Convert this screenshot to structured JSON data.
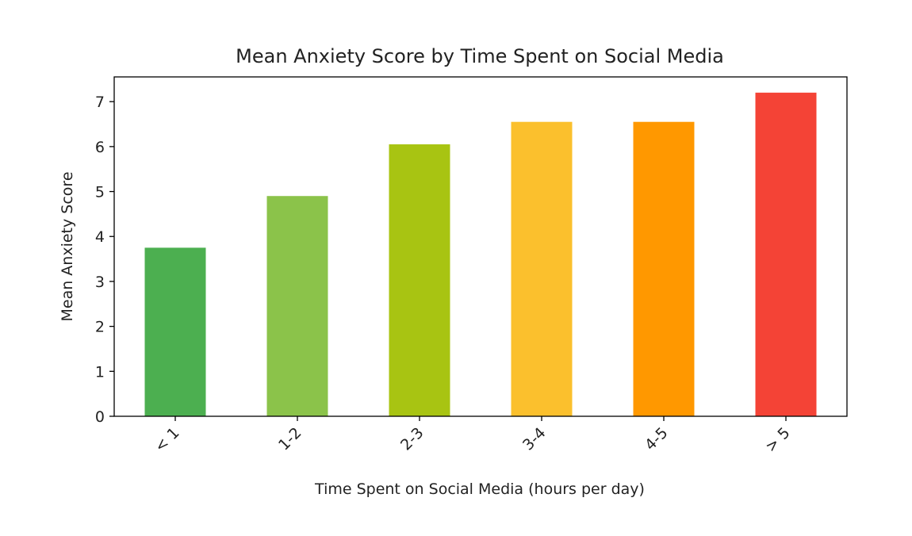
{
  "chart_data": {
    "type": "bar",
    "title": "Mean Anxiety Score by Time Spent on Social Media",
    "xlabel": "Time Spent on Social Media (hours per day)",
    "ylabel": "Mean Anxiety Score",
    "categories": [
      "< 1",
      "1-2",
      "2-3",
      "3-4",
      "4-5",
      "> 5"
    ],
    "values": [
      3.75,
      4.9,
      6.05,
      6.55,
      6.55,
      7.2
    ],
    "colors": [
      "#4caf50",
      "#8bc34a",
      "#a8c412",
      "#fbc02d",
      "#ff9800",
      "#f44336"
    ],
    "ylim": [
      0,
      7.55
    ],
    "yticks": [
      0,
      1,
      2,
      3,
      4,
      5,
      6,
      7
    ],
    "grid": false,
    "legend": "none"
  }
}
